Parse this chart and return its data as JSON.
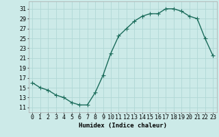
{
  "x": [
    0,
    1,
    2,
    3,
    4,
    5,
    6,
    7,
    8,
    9,
    10,
    11,
    12,
    13,
    14,
    15,
    16,
    17,
    18,
    19,
    20,
    21,
    22,
    23
  ],
  "y": [
    16,
    15,
    14.5,
    13.5,
    13,
    12,
    11.5,
    11.5,
    14,
    17.5,
    22,
    25.5,
    27,
    28.5,
    29.5,
    30,
    30,
    31,
    31,
    30.5,
    29.5,
    29,
    25,
    21.5
  ],
  "line_color": "#1a6b5a",
  "marker_color": "#1a6b5a",
  "bg_color": "#cceae8",
  "grid_color": "#b0d8d5",
  "xlabel": "Humidex (Indice chaleur)",
  "ylabel_ticks": [
    11,
    13,
    15,
    17,
    19,
    21,
    23,
    25,
    27,
    29,
    31
  ],
  "xlim": [
    -0.5,
    23.5
  ],
  "ylim": [
    10.0,
    32.5
  ],
  "xlabel_fontsize": 6.5,
  "tick_fontsize": 6,
  "linewidth": 1.0,
  "markersize": 2.0
}
